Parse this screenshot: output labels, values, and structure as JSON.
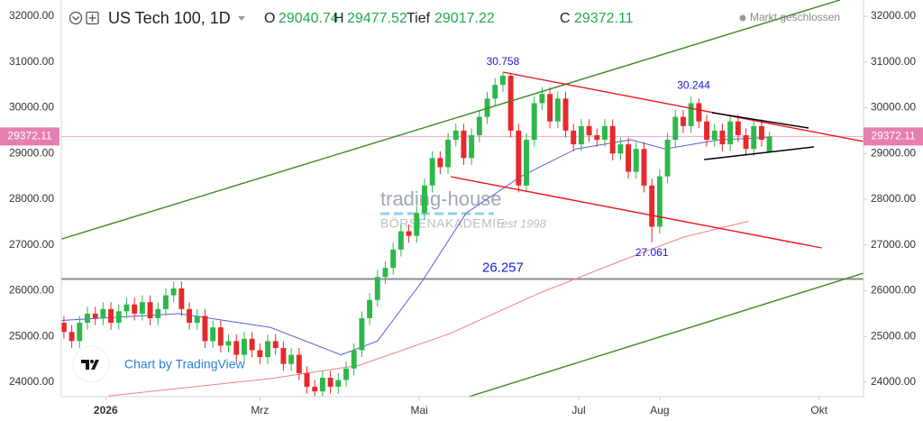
{
  "chart_data": {
    "type": "candlestick",
    "title": "US Tech 100, 1D",
    "ohlc_labels": [
      "O",
      "H",
      "Tief",
      "C"
    ],
    "status": "Markt geschlossen",
    "watermark": {
      "name": "trading-house",
      "subtitle": "BÖRSENAKADEMIE",
      "est": "est 1998"
    },
    "attribution": "Chart by TradingView",
    "up_color": "#2eb84b",
    "down_color": "#e8282b",
    "price_line_color": "#e67fb0",
    "xlim": [
      -17,
      290
    ],
    "xticks": [
      {
        "value": 0,
        "label": "2026"
      },
      {
        "value": 59,
        "label": "Mrz"
      },
      {
        "value": 120,
        "label": "Mai"
      },
      {
        "value": 181,
        "label": "Jul"
      },
      {
        "value": 212,
        "label": "Aug"
      },
      {
        "value": 273,
        "label": "Okt"
      }
    ],
    "ylim": [
      23685,
      32355
    ],
    "yticks": [
      {
        "value": 24000,
        "label": "24000.00"
      },
      {
        "value": 25000,
        "label": "25000.00"
      },
      {
        "value": 26000,
        "label": "26000.00"
      },
      {
        "value": 27000,
        "label": "27000.00"
      },
      {
        "value": 28000,
        "label": "28000.00"
      },
      {
        "value": 29000,
        "label": "29000.00"
      },
      {
        "value": 30000,
        "label": "30000.00"
      },
      {
        "value": 31000,
        "label": "31000.00"
      },
      {
        "value": 32000,
        "label": "32000.00"
      }
    ],
    "grid": false,
    "x": [
      -16,
      -13,
      -10,
      -7,
      -4,
      -1,
      2,
      5,
      8,
      11,
      14,
      17,
      20,
      23,
      26,
      29,
      32,
      35,
      38,
      41,
      44,
      47,
      50,
      53,
      56,
      59,
      62,
      65,
      68,
      71,
      74,
      77,
      80,
      83,
      86,
      89,
      92,
      95,
      98,
      101,
      104,
      107,
      110,
      113,
      116,
      119,
      122,
      125,
      128,
      131,
      134,
      137,
      140,
      143,
      146,
      149,
      152,
      155,
      158,
      161,
      164,
      167,
      170,
      173,
      176,
      179,
      182,
      185,
      188,
      191,
      194,
      197,
      200,
      203,
      206,
      209,
      212,
      215,
      218,
      221,
      224,
      227,
      230,
      233,
      236,
      239,
      242,
      245,
      248,
      251,
      254
    ],
    "open": [
      25300,
      25100,
      24900,
      25300,
      25500,
      25400,
      25600,
      25300,
      25550,
      25700,
      25500,
      25750,
      25400,
      25600,
      25900,
      26050,
      25600,
      25300,
      25450,
      24900,
      25200,
      24800,
      24900,
      24600,
      24950,
      24700,
      24550,
      24900,
      24750,
      24400,
      24600,
      24200,
      23900,
      23800,
      24100,
      23900,
      24050,
      24300,
      24700,
      25400,
      25800,
      26300,
      26500,
      26900,
      27300,
      27200,
      27700,
      28300,
      28900,
      28700,
      29300,
      29500,
      28900,
      29400,
      29800,
      30200,
      30500,
      30700,
      29500,
      28300,
      29300,
      30100,
      30300,
      29700,
      30200,
      29500,
      29200,
      29600,
      29400,
      29300,
      29600,
      29000,
      29200,
      28600,
      29100,
      28300,
      27400,
      28500,
      29300,
      29800,
      29600,
      30100,
      29700,
      29300,
      29500,
      29200,
      29700,
      29400,
      29100,
      29600,
      29040.74
    ],
    "high": [
      25450,
      25250,
      25450,
      25650,
      25650,
      25750,
      25750,
      25700,
      25850,
      25850,
      25900,
      25900,
      25750,
      26050,
      26200,
      26200,
      25750,
      25600,
      25600,
      25350,
      25350,
      25050,
      25050,
      25100,
      25100,
      24850,
      25050,
      25050,
      24900,
      24750,
      24750,
      24350,
      24050,
      24250,
      24250,
      24200,
      24450,
      24850,
      25550,
      25950,
      26450,
      26650,
      27050,
      27450,
      27450,
      27850,
      28450,
      29050,
      29050,
      29450,
      29650,
      29650,
      29550,
      29950,
      30350,
      30650,
      30758,
      30750,
      29650,
      29450,
      30250,
      30450,
      30450,
      30350,
      30350,
      29650,
      29750,
      29750,
      29550,
      29750,
      29750,
      29350,
      29350,
      29250,
      29250,
      28450,
      28650,
      29450,
      29950,
      29950,
      30244,
      30200,
      29850,
      29650,
      29650,
      29850,
      29850,
      29550,
      29750,
      29750,
      29477.52
    ],
    "low": [
      24950,
      24750,
      24750,
      25150,
      25250,
      25250,
      25150,
      25150,
      25400,
      25350,
      25350,
      25250,
      25250,
      25450,
      25750,
      25450,
      25150,
      25150,
      24750,
      24750,
      24650,
      24650,
      24450,
      24450,
      24550,
      24400,
      24400,
      24600,
      24250,
      24250,
      24050,
      23750,
      23650,
      23650,
      23750,
      23750,
      23900,
      24150,
      24550,
      25250,
      25650,
      26150,
      26350,
      26750,
      27050,
      27050,
      27550,
      28150,
      28550,
      28550,
      29150,
      28750,
      28750,
      29250,
      29650,
      30050,
      30350,
      29350,
      28150,
      28150,
      29150,
      29950,
      29550,
      29550,
      29350,
      29050,
      29050,
      29250,
      29150,
      29150,
      28850,
      28850,
      28450,
      28450,
      28150,
      27061,
      27250,
      28350,
      29150,
      29450,
      29450,
      29550,
      29150,
      29150,
      29050,
      29050,
      29250,
      28950,
      28950,
      29150,
      29017.22
    ],
    "close": [
      25100,
      24900,
      25300,
      25500,
      25400,
      25600,
      25300,
      25550,
      25700,
      25500,
      25750,
      25400,
      25600,
      25900,
      26050,
      25600,
      25300,
      25450,
      24900,
      25200,
      24800,
      24900,
      24600,
      24950,
      24700,
      24550,
      24900,
      24750,
      24400,
      24600,
      24200,
      23900,
      23800,
      24100,
      23900,
      24050,
      24300,
      24700,
      25400,
      25800,
      26300,
      26500,
      26900,
      27300,
      27200,
      27700,
      28300,
      28900,
      28700,
      29300,
      29500,
      28900,
      29400,
      29800,
      30200,
      30500,
      30700,
      29500,
      28300,
      29300,
      30100,
      30300,
      29700,
      30200,
      29500,
      29200,
      29600,
      29400,
      29300,
      29600,
      29000,
      29200,
      28600,
      29100,
      28300,
      27400,
      28500,
      29300,
      29800,
      29600,
      30100,
      29700,
      29300,
      29500,
      29200,
      29700,
      29400,
      29100,
      29600,
      29300,
      29372.11
    ],
    "moving_averages": [
      {
        "color": "#5a5ae0",
        "x": [
          -17,
          28,
          63,
          90,
          104,
          121,
          138,
          159,
          180,
          201,
          214,
          235,
          254
        ],
        "values": [
          25350,
          25500,
          25200,
          24600,
          24900,
          26200,
          27700,
          28500,
          29100,
          29300,
          29100,
          29300,
          29350
        ]
      },
      {
        "color": "#f08080",
        "x": [
          1,
          63,
          97,
          132,
          166,
          201,
          221,
          246
        ],
        "values": [
          23700,
          24080,
          24370,
          25070,
          25950,
          26740,
          27170,
          27520
        ]
      }
    ],
    "trendlines": [
      {
        "color": "#3a8a1e",
        "x": [
          -17,
          281
        ],
        "y": [
          27130,
          32355
        ]
      },
      {
        "color": "#3a8a1e",
        "x": [
          139,
          290
        ],
        "y": [
          23685,
          26384
        ]
      },
      {
        "color": "#e8141c",
        "x": [
          152,
          290
        ],
        "y": [
          30778,
          29261
        ]
      },
      {
        "color": "#e8141c",
        "x": [
          132,
          274
        ],
        "y": [
          28493,
          26936
        ]
      },
      {
        "color": "#000000",
        "x": [
          232,
          269
        ],
        "y": [
          29892,
          29557
        ]
      },
      {
        "color": "#000000",
        "x": [
          229,
          271
        ],
        "y": [
          28867,
          29143
        ]
      }
    ],
    "hlines": [
      {
        "value": 26257,
        "color": "#8c8c8c"
      }
    ],
    "annotations": [
      {
        "x": 152,
        "y": 30758,
        "label": "30.758"
      },
      {
        "x": 225,
        "y": 30244,
        "label": "30.244"
      },
      {
        "x": 209,
        "y": 27061,
        "label": "27.061"
      },
      {
        "x": 152,
        "y": 26257,
        "label": "26.257"
      }
    ]
  }
}
